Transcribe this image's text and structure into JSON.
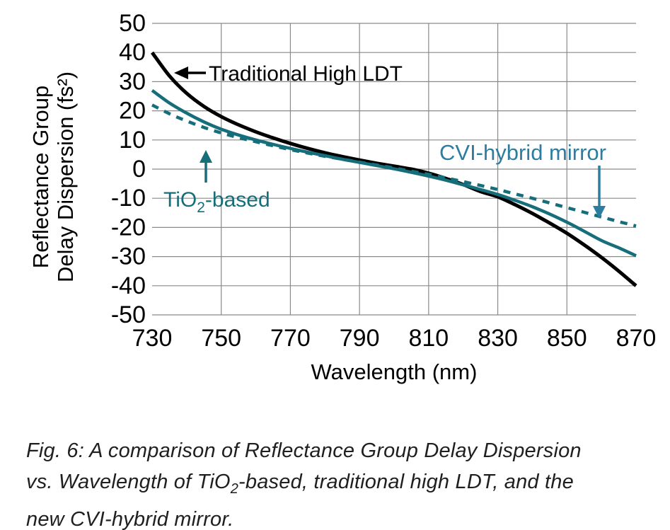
{
  "figure": {
    "caption": {
      "line1": "Fig. 6: A comparison of Reflectance Group Delay Dispersion",
      "line2_pre": "vs. Wavelength of TiO",
      "line2_sub": "2",
      "line2_post": "-based, traditional high LDT, and the",
      "line3": "new CVI-hybrid mirror."
    }
  },
  "chart_data": {
    "type": "line",
    "title": "",
    "xlabel": "Wavelength (nm)",
    "ylabel_line1": "Reflectance Group",
    "ylabel_line2": "Delay Dispersion (fs²)",
    "xlim": [
      730,
      870
    ],
    "ylim": [
      -50,
      50
    ],
    "x_ticks": [
      730,
      750,
      770,
      790,
      810,
      830,
      850,
      870
    ],
    "y_ticks": [
      50,
      40,
      30,
      20,
      10,
      0,
      -10,
      -20,
      -30,
      -40,
      -50
    ],
    "grid": true,
    "grid_color": "#8a8a8a",
    "legend_position": "annotations-on-plot",
    "x": [
      730,
      735,
      740,
      745,
      750,
      755,
      760,
      765,
      770,
      775,
      780,
      785,
      790,
      795,
      800,
      805,
      810,
      815,
      820,
      825,
      830,
      835,
      840,
      845,
      850,
      855,
      860,
      865,
      870
    ],
    "series": [
      {
        "name": "Traditional High LDT",
        "style": "solid",
        "color": "#000000",
        "width": 5,
        "values": [
          40,
          32,
          26,
          21.5,
          18,
          15.2,
          12.8,
          10.7,
          8.8,
          7.1,
          5.6,
          4.3,
          3.1,
          2,
          1,
          0,
          -1.4,
          -3.2,
          -5.3,
          -7.7,
          -9.5,
          -12.2,
          -15.2,
          -18.5,
          -22,
          -26,
          -30.3,
          -35,
          -40
        ]
      },
      {
        "name": "TiO2-based",
        "style": "solid",
        "color": "#156e7a",
        "width": 4.5,
        "values": [
          27,
          22.7,
          19.2,
          16.2,
          13.7,
          11.7,
          10,
          8.5,
          7.1,
          5.8,
          4.6,
          3.4,
          2.3,
          1.2,
          0.1,
          -1.1,
          -2.4,
          -3.8,
          -5.4,
          -7,
          -8.7,
          -10.7,
          -12.9,
          -15.4,
          -18.2,
          -21.3,
          -24.5,
          -27,
          -29.7
        ]
      },
      {
        "name": "CVI-hybrid mirror",
        "style": "dashed",
        "color": "#156e7a",
        "width": 4.5,
        "values": [
          22,
          19,
          16.5,
          14.3,
          12.4,
          10.8,
          9.4,
          8,
          6.7,
          5.5,
          4.4,
          3.4,
          2.4,
          1.4,
          0.4,
          -0.7,
          -1.8,
          -3,
          -4.3,
          -5.6,
          -7,
          -8.5,
          -10,
          -11.6,
          -13.2,
          -14.8,
          -16.4,
          -18,
          -19.5
        ]
      }
    ],
    "annotations": [
      {
        "id": "traditional",
        "text": "Traditional High LDT",
        "color": "#000000",
        "arrow": "left"
      },
      {
        "id": "tio2",
        "text_pre": "TiO",
        "text_sub": "2",
        "text_post": "-based",
        "color": "#156e7a",
        "arrow": "up"
      },
      {
        "id": "cvi",
        "text": "CVI-hybrid mirror",
        "color": "#2d7da0",
        "arrow": "down"
      }
    ]
  }
}
